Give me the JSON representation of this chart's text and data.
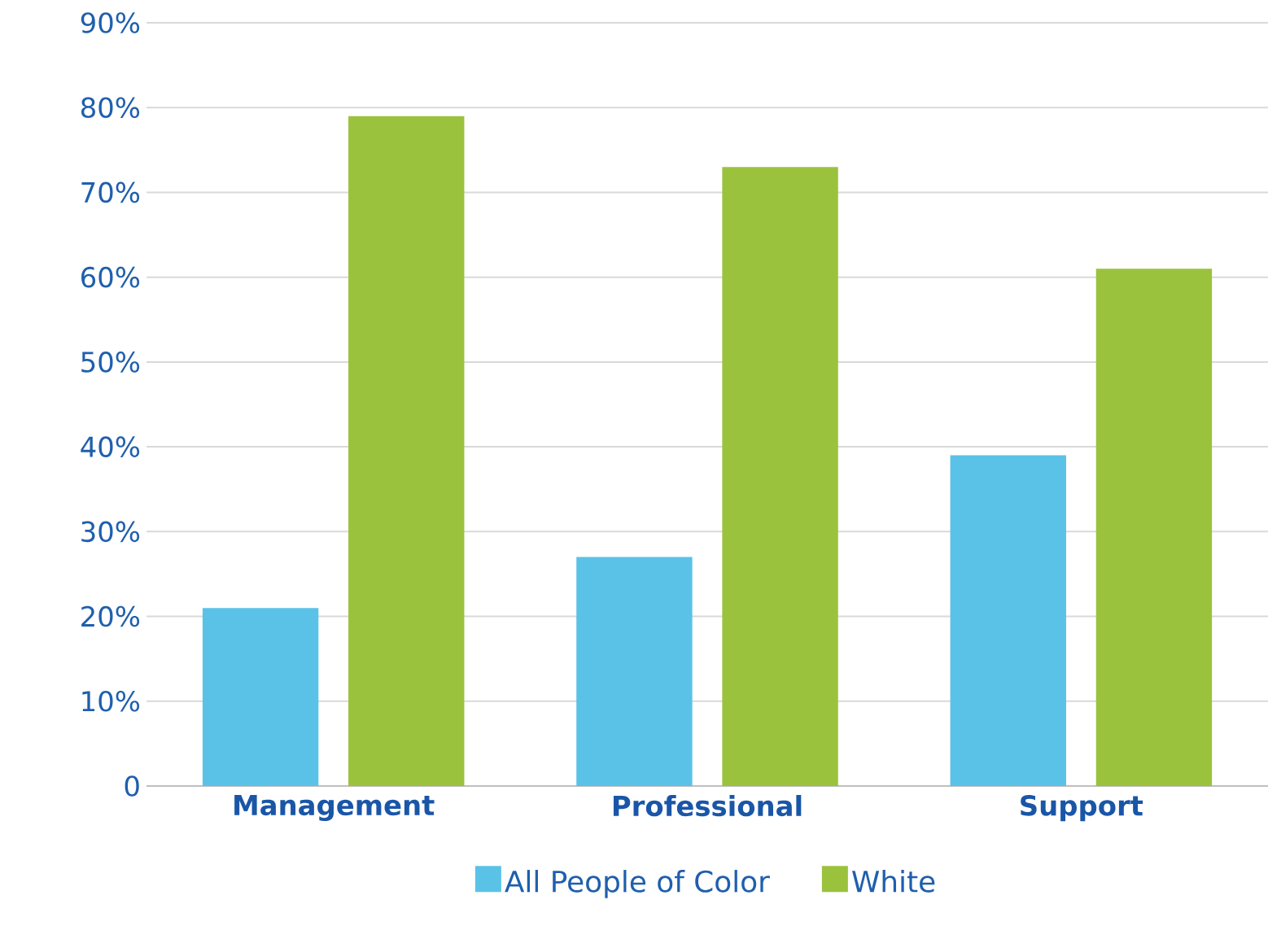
{
  "chart_data": {
    "type": "bar",
    "categories": [
      "Management",
      "Professional",
      "Support"
    ],
    "series": [
      {
        "name": "All People of Color",
        "color": "#5bc2e7",
        "values": [
          21,
          27,
          39
        ]
      },
      {
        "name": "White",
        "color": "#9bc23c",
        "values": [
          79,
          73,
          61
        ]
      }
    ],
    "ylim": [
      0,
      90
    ],
    "yticks": [
      {
        "value": 0,
        "label": "0"
      },
      {
        "value": 10,
        "label": "10%"
      },
      {
        "value": 20,
        "label": "20%"
      },
      {
        "value": 30,
        "label": "30%"
      },
      {
        "value": 40,
        "label": "40%"
      },
      {
        "value": 50,
        "label": "50%"
      },
      {
        "value": 60,
        "label": "60%"
      },
      {
        "value": 70,
        "label": "70%"
      },
      {
        "value": 80,
        "label": "80%"
      },
      {
        "value": 90,
        "label": "90%"
      }
    ],
    "grid": "y",
    "legend": "bottom"
  }
}
